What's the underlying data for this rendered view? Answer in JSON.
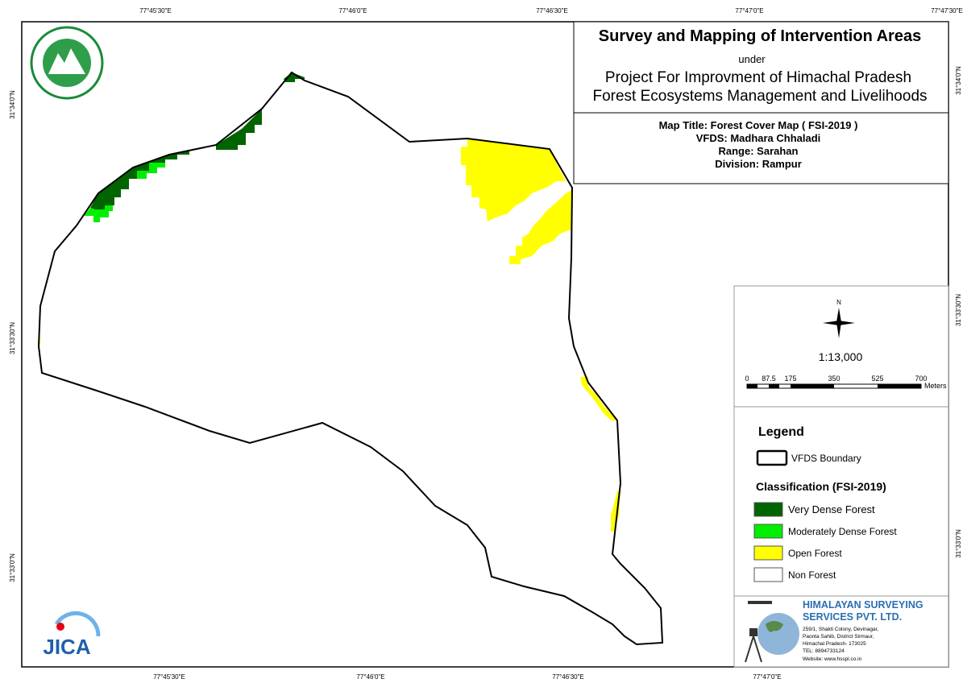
{
  "map": {
    "top_labels": [
      "77°45'30\"E",
      "77°46'0\"E",
      "77°46'30\"E",
      "77°47'0\"E",
      "77°47'30\"E"
    ],
    "bottom_labels": [
      "77°45'30\"E",
      "77°46'0\"E",
      "77°46'30\"E",
      "77°47'0\"E"
    ],
    "left_labels": [
      "31°34'0\"N",
      "31°33'30\"N",
      "31°33'0\"N"
    ],
    "right_labels": [
      "31°34'0\"N",
      "31°33'30\"N",
      "31°33'0\"N"
    ],
    "logo_text": "JICA"
  },
  "header": {
    "title": "Survey and Mapping of Intervention Areas",
    "under": "under",
    "project_line1": "Project For Improvment of Himachal Pradesh",
    "project_line2": "Forest Ecosystems Management and Livelihoods"
  },
  "map_info": {
    "map_title": "Map Title: Forest Cover Map ( FSI-2019 )",
    "vfds": "VFDS: Madhara Chhaladi",
    "range": "Range: Sarahan",
    "division": "Division: Rampur"
  },
  "scale": {
    "north": "N",
    "ratio": "1:13,000",
    "ticks": [
      0,
      87.5,
      175,
      350,
      525,
      700
    ],
    "unit": "Meters"
  },
  "legend": {
    "title": "Legend",
    "boundary": "VFDS Boundary",
    "classification_title": "Classification (FSI-2019)",
    "items": [
      "Very Dense Forest",
      "Moderately Dense Forest",
      "Open Forest",
      "Non Forest"
    ]
  },
  "company": {
    "name_line1": "HIMALAYAN SURVEYING",
    "name_line2": "SERVICES PVT. LTD.",
    "address": [
      "259/1, Shakti Colony, Devinagar,",
      "Paonta Sahib, District Sirmaur,",
      "Himachal Pradesh- 173025",
      "TEL: 8894733124",
      "Website: www.hsspl.co.in"
    ]
  }
}
